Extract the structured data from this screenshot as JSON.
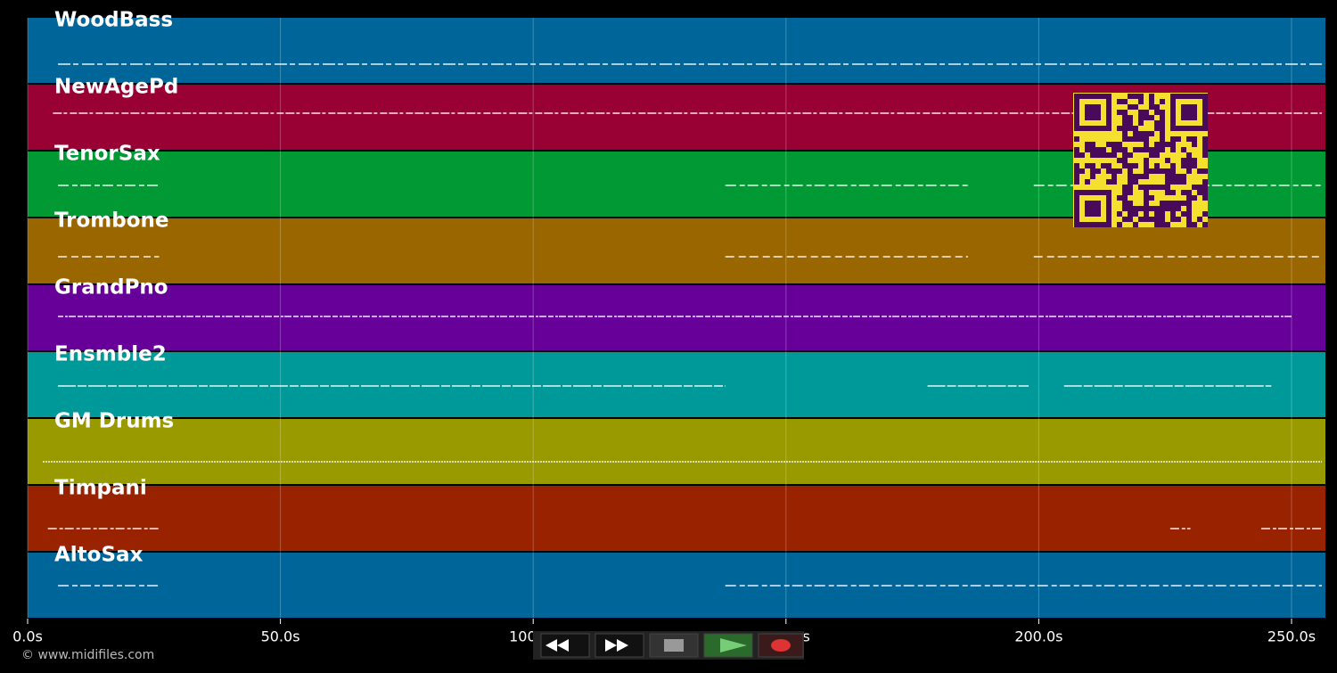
{
  "chart_data": {
    "type": "pianoroll",
    "xlim": [
      0,
      256.7
    ],
    "xticks": [
      {
        "value": 0,
        "label": "0.0s"
      },
      {
        "value": 50,
        "label": "50.0s"
      },
      {
        "value": 100,
        "label": "100.0s"
      },
      {
        "value": 150,
        "label": "150.0s"
      },
      {
        "value": 200,
        "label": "200.0s"
      },
      {
        "value": 250,
        "label": "250.0s"
      }
    ],
    "grid": true,
    "series": [
      {
        "name": "WoodBass",
        "color": "#006699",
        "segments": [
          [
            6,
            256
          ]
        ]
      },
      {
        "name": "NewAgePd",
        "color": "#990033",
        "segments": [
          [
            5,
            256
          ]
        ]
      },
      {
        "name": "TenorSax",
        "color": "#009933",
        "segments": [
          [
            6,
            26
          ],
          [
            138,
            186
          ],
          [
            199,
            256
          ]
        ]
      },
      {
        "name": "Trombone",
        "color": "#996600",
        "segments": [
          [
            6,
            26
          ],
          [
            138,
            186
          ],
          [
            199,
            256
          ]
        ]
      },
      {
        "name": "GrandPno",
        "color": "#660099",
        "segments": [
          [
            6,
            250
          ]
        ]
      },
      {
        "name": "Ensmble2",
        "color": "#009999",
        "segments": [
          [
            6,
            138
          ],
          [
            178,
            198
          ],
          [
            205,
            246
          ]
        ]
      },
      {
        "name": "GM Drums",
        "color": "#999900",
        "segments": [
          [
            3,
            256
          ]
        ]
      },
      {
        "name": "Timpani",
        "color": "#992200",
        "segments": [
          [
            4,
            26
          ],
          [
            226,
            230
          ],
          [
            244,
            256
          ]
        ]
      },
      {
        "name": "AltoSax",
        "color": "#006699",
        "segments": [
          [
            6,
            26
          ],
          [
            138,
            256
          ]
        ]
      }
    ],
    "credit": "© www.midifiles.com"
  }
}
